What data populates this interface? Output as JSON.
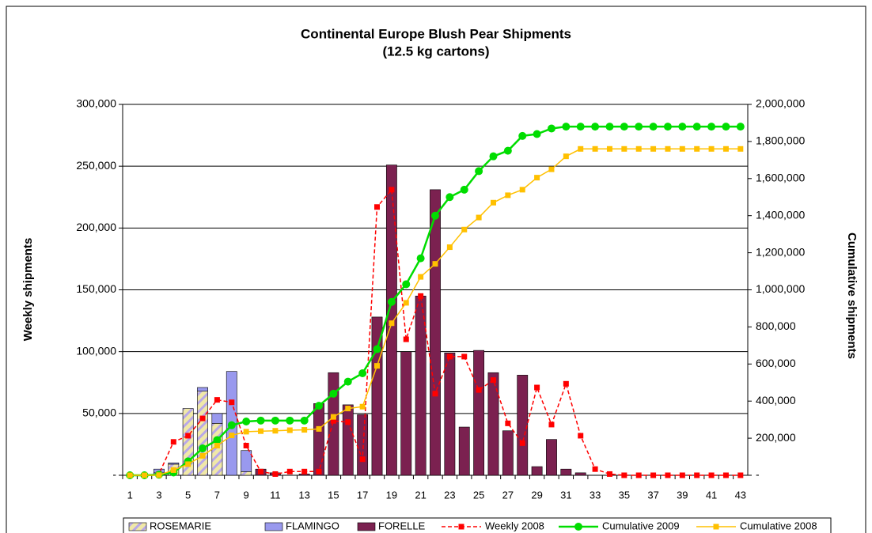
{
  "chart_data": {
    "type": "bar",
    "title": "Continental Europe Blush Pear Shipments",
    "subtitle": "(12.5 kg cartons)",
    "y_label": "Weekly shipments",
    "y2_label": "Cumulative shipments",
    "categories": [
      "1",
      null,
      "3",
      null,
      "5",
      null,
      "7",
      null,
      "9",
      null,
      "11",
      null,
      "13",
      null,
      "15",
      null,
      "17",
      null,
      "19",
      null,
      "21",
      null,
      "23",
      null,
      "25",
      null,
      "27",
      null,
      "29",
      null,
      "31",
      null,
      "33",
      null,
      "35",
      null,
      "37",
      null,
      "39",
      null,
      "41",
      null,
      "43"
    ],
    "ylim": [
      0,
      300000
    ],
    "yticks": [
      {
        "value": 0,
        "label": "-"
      },
      {
        "value": 50000,
        "label": "50,000"
      },
      {
        "value": 100000,
        "label": "100,000"
      },
      {
        "value": 150000,
        "label": "150,000"
      },
      {
        "value": 200000,
        "label": "200,000"
      },
      {
        "value": 250000,
        "label": "250,000"
      },
      {
        "value": 300000,
        "label": "300,000"
      }
    ],
    "y2lim": [
      0,
      2000000
    ],
    "y2ticks": [
      {
        "value": 0,
        "label": "-"
      },
      {
        "value": 200000,
        "label": "200,000"
      },
      {
        "value": 400000,
        "label": "400,000"
      },
      {
        "value": 600000,
        "label": "600,000"
      },
      {
        "value": 800000,
        "label": "800,000"
      },
      {
        "value": 1000000,
        "label": "1,000,000"
      },
      {
        "value": 1200000,
        "label": "1,200,000"
      },
      {
        "value": 1400000,
        "label": "1,400,000"
      },
      {
        "value": 1600000,
        "label": "1,600,000"
      },
      {
        "value": 1800000,
        "label": "1,800,000"
      },
      {
        "value": 2000000,
        "label": "2,000,000"
      }
    ],
    "grid": true,
    "stacked": true,
    "legend": "bottom",
    "series": [
      {
        "name": "ROSEMARIE",
        "type": "bar",
        "color": "#f0e8a8",
        "hatch": "#b8a8e8",
        "values": [
          0,
          0,
          2000,
          9000,
          54000,
          68000,
          42000,
          0,
          3000,
          0,
          0,
          0,
          0,
          0,
          0,
          0,
          0,
          0,
          0,
          0,
          0,
          0,
          0,
          0,
          0,
          0,
          0,
          0,
          0,
          0,
          0,
          0,
          0,
          0,
          0,
          0,
          0,
          0,
          0,
          0,
          0,
          0,
          0
        ]
      },
      {
        "name": "FLAMINGO",
        "type": "bar",
        "color": "#9999ee",
        "values": [
          0,
          0,
          3000,
          1000,
          0,
          3000,
          8000,
          84000,
          17000,
          0,
          0,
          0,
          0,
          0,
          0,
          0,
          0,
          0,
          0,
          0,
          0,
          0,
          0,
          0,
          0,
          0,
          0,
          0,
          0,
          0,
          0,
          0,
          0,
          0,
          0,
          0,
          0,
          0,
          0,
          0,
          0,
          0,
          0
        ]
      },
      {
        "name": "FORELLE",
        "type": "bar",
        "color": "#7b2150",
        "values": [
          0,
          0,
          0,
          0,
          0,
          0,
          0,
          0,
          0,
          5000,
          2000,
          0,
          1000,
          58000,
          83000,
          57000,
          49000,
          128000,
          251000,
          100000,
          145000,
          231000,
          99000,
          39000,
          101000,
          83000,
          36000,
          81000,
          7000,
          29000,
          5000,
          2000,
          0,
          0,
          0,
          0,
          0,
          0,
          0,
          0,
          0,
          0,
          0
        ]
      },
      {
        "name": "Weekly 2008",
        "type": "line",
        "color": "#ff0000",
        "marker": "square",
        "dashed": true,
        "values": [
          0,
          0,
          1000,
          27000,
          32000,
          46000,
          61000,
          59000,
          24000,
          3000,
          1000,
          3000,
          3000,
          3000,
          44000,
          43000,
          13000,
          217000,
          231000,
          110000,
          145000,
          66000,
          96000,
          96000,
          69000,
          77000,
          42000,
          26000,
          71000,
          41000,
          74000,
          32000,
          5000,
          1000,
          0,
          0,
          0,
          0,
          0,
          0,
          0,
          0,
          0
        ]
      },
      {
        "name": "Cumulative 2009",
        "type": "line",
        "color": "#00dd00",
        "marker": "circle",
        "axis": "y2",
        "values": [
          0,
          0,
          3000,
          15000,
          75000,
          145000,
          190000,
          270000,
          290000,
          295000,
          295000,
          295000,
          295000,
          375000,
          440000,
          505000,
          550000,
          680000,
          935000,
          1030000,
          1170000,
          1400000,
          1500000,
          1540000,
          1640000,
          1720000,
          1750000,
          1830000,
          1840000,
          1870000,
          1880000,
          1880000,
          1880000,
          1880000,
          1880000,
          1880000,
          1880000,
          1880000,
          1880000,
          1880000,
          1880000,
          1880000,
          1880000
        ]
      },
      {
        "name": "Cumulative 2008",
        "type": "line",
        "color": "#ffc000",
        "marker": "square",
        "axis": "y2",
        "values": [
          0,
          0,
          1000,
          28000,
          60000,
          105000,
          160000,
          215000,
          235000,
          238000,
          240000,
          243000,
          245000,
          250000,
          315000,
          360000,
          370000,
          590000,
          820000,
          930000,
          1070000,
          1140000,
          1230000,
          1325000,
          1390000,
          1470000,
          1510000,
          1540000,
          1605000,
          1650000,
          1720000,
          1760000,
          1760000,
          1760000,
          1760000,
          1760000,
          1760000,
          1760000,
          1760000,
          1760000,
          1760000,
          1760000,
          1760000
        ]
      }
    ]
  }
}
